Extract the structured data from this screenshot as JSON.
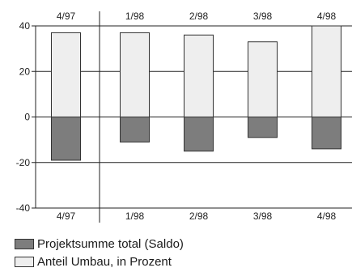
{
  "chart_data": {
    "type": "bar",
    "categories": [
      "4/97",
      "1/98",
      "2/98",
      "3/98",
      "4/98"
    ],
    "series": [
      {
        "name": "Projektsumme total (Saldo)",
        "values": [
          -19,
          -11,
          -15,
          -9,
          -14
        ],
        "color": "#7d7d7d"
      },
      {
        "name": "Anteil Umbau, in Prozent",
        "values": [
          37,
          37,
          36,
          33,
          40
        ],
        "color": "#eeeeee"
      }
    ],
    "ylim": [
      -40,
      40
    ],
    "yticks": [
      "40",
      "20",
      "0",
      "-20",
      "-40"
    ],
    "grid": true,
    "legend": "bottom"
  }
}
